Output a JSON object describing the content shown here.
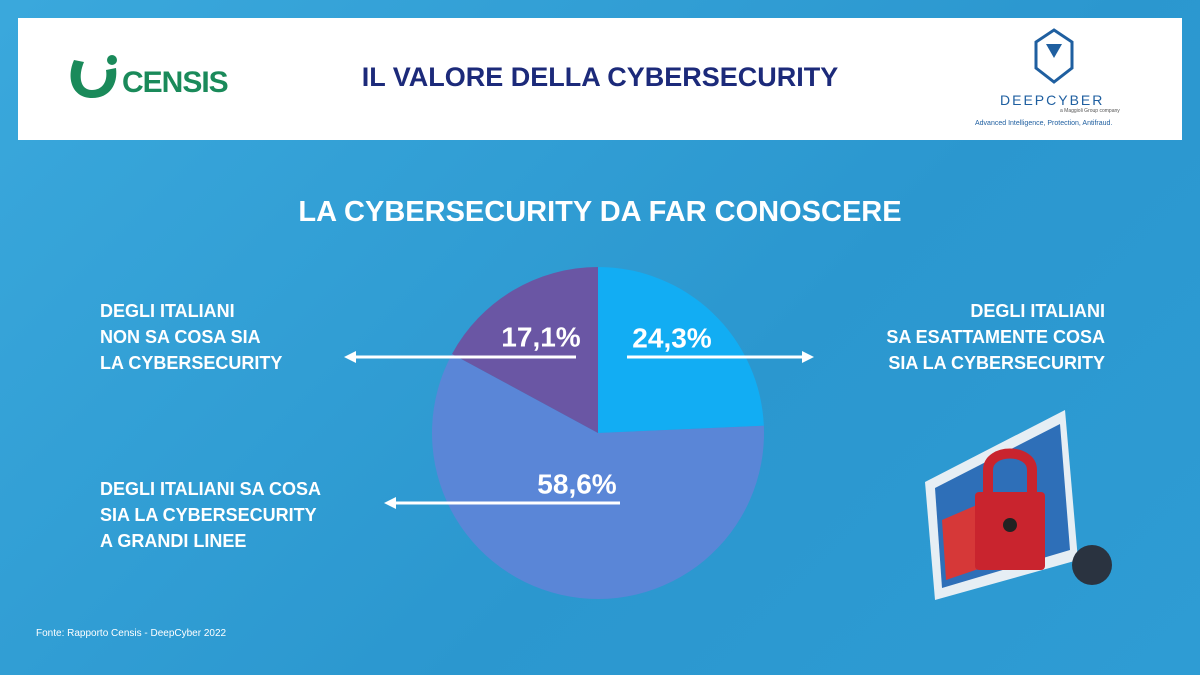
{
  "header": {
    "title": "IL VALORE DELLA CYBERSECURITY",
    "left_logo": "CENSIS",
    "right_logo": "DEEPCYBER",
    "right_logo_sub": "a Maggioli Group company",
    "right_logo_tagline": "Advanced Intelligence, Protection, Antifraud."
  },
  "chart_data": {
    "type": "pie",
    "title": "LA CYBERSECURITY DA FAR CONOSCERE",
    "categories": [
      "DEGLI ITALIANI\nSA ESATTAMENTE COSA\nSIA LA CYBERSECURITY",
      "DEGLI ITALIANI SA COSA\nSIA LA CYBERSECURITY\nA GRANDI LINEE",
      "DEGLI ITALIANI\nNON SA COSA SIA\nLA CYBERSECURITY"
    ],
    "values": [
      24.3,
      58.6,
      17.1
    ],
    "value_labels": [
      "24,3%",
      "58,6%",
      "17,1%"
    ],
    "colors": [
      "#12adf3",
      "#5a86d7",
      "#6a56a4"
    ]
  },
  "source": "Fonte: Rapporto Censis - DeepCyber 2022"
}
